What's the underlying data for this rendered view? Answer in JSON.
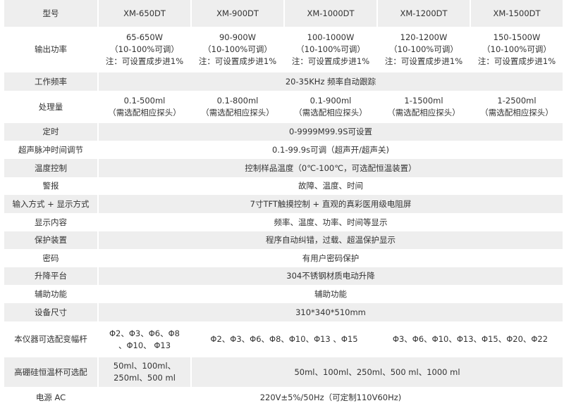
{
  "header": {
    "label": "型号",
    "models": [
      "XM-650DT",
      "XM-900DT",
      "XM-1000DT",
      "XM-1200DT",
      "XM-1500DT"
    ]
  },
  "power": {
    "label": "输出功率",
    "ranges": [
      "65-650W",
      "90-900W",
      "100-1000W",
      "120-1200W",
      "150-1500W"
    ],
    "adjust": "（10-100%可调）",
    "note": "注：可设置成步进1%"
  },
  "frequency": {
    "label": "工作频率",
    "value": "20-35KHz 频率自动跟踪"
  },
  "capacity": {
    "label": "处理量",
    "values": [
      "0.1-500ml",
      "0.1-800ml",
      "0.1-900ml",
      "1-1500ml",
      "1-2500ml"
    ],
    "note": "（需选配相应探头）"
  },
  "timer": {
    "label": "定时",
    "value": "0-9999M99.9S可设置"
  },
  "pulse": {
    "label": "超声脉冲时间调节",
    "value": "0.1-99.9s可调（超声开/超声关)"
  },
  "temp": {
    "label": "温度控制",
    "value": "控制样品温度（0℃-100℃，可选配恒温装置）"
  },
  "alarm": {
    "label": "警报",
    "value": "故障、温度、时间"
  },
  "input": {
    "label": "输入方式 + 显示方式",
    "value": "7寸TFT触摸控制 + 直观的真彩医用级电阻屏"
  },
  "display": {
    "label": "显示内容",
    "value": "频率、温度、功率、时间等显示"
  },
  "protection": {
    "label": "保护装置",
    "value": "程序自动纠错，过载、超温保护显示"
  },
  "password": {
    "label": "密码",
    "value": "有用户密码保护"
  },
  "platform": {
    "label": "升降平台",
    "value": "304不锈钢材质电动升降"
  },
  "aux": {
    "label": "辅助功能",
    "value": "辅助功能"
  },
  "size": {
    "label": "设备尺寸",
    "value": "310*340*510mm"
  },
  "horn": {
    "label": "本仪器可选配变幅杆",
    "col1_line1": "Φ2、Φ3、Φ6、Φ8",
    "col1_line2": "、Φ10、 Φ13",
    "mid": "Φ2、Φ3、Φ6、Φ8、Φ10、Φ13 、Φ15",
    "right": "Φ3、Φ6、Φ10、Φ13、Φ15、Φ20、Φ22"
  },
  "cup": {
    "label": "高硼硅恒温杯可选配",
    "col1_line1": "50ml、100ml、",
    "col1_line2": "250ml、500 ml",
    "rest": "50ml、100ml、250ml、500 ml、1000 ml"
  },
  "mains": {
    "label": "电源 AC",
    "value": "220V±5%/50Hz（可定制110V60Hz)"
  }
}
